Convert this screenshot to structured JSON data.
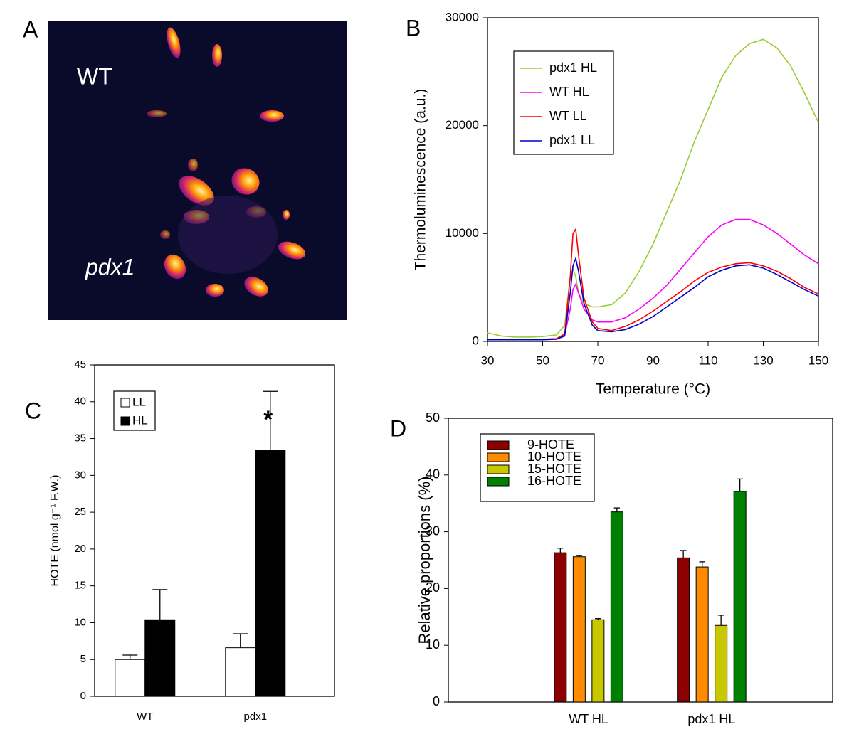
{
  "image": {
    "panel": "A",
    "labels": [
      "WT",
      "pdx1"
    ]
  },
  "chart_data": [
    {
      "type": "line",
      "panel": "B",
      "x_label": "Temperature  (°C)",
      "y_label": "Thermoluminescence  (a.u.)",
      "x": [
        30,
        35,
        40,
        45,
        50,
        55,
        58,
        60,
        61,
        62,
        63,
        65,
        68,
        70,
        75,
        80,
        85,
        90,
        95,
        100,
        105,
        110,
        115,
        120,
        125,
        130,
        135,
        140,
        145,
        150
      ],
      "xlim": [
        30,
        150
      ],
      "xticks": [
        30,
        50,
        70,
        90,
        110,
        130,
        150
      ],
      "ylim": [
        0,
        30000
      ],
      "yticks": [
        0,
        10000,
        20000,
        30000
      ],
      "legend": "upper left",
      "series": [
        {
          "name": "pdx1 HL",
          "color": "#9acd32",
          "values": [
            800,
            500,
            400,
            400,
            450,
            600,
            1500,
            6000,
            6700,
            6000,
            4500,
            3500,
            3200,
            3200,
            3400,
            4500,
            6500,
            9000,
            12000,
            15000,
            18500,
            21500,
            24500,
            26500,
            27600,
            28000,
            27200,
            25500,
            23000,
            20300
          ]
        },
        {
          "name": "WT HL",
          "color": "#ff00ff",
          "values": [
            200,
            200,
            200,
            200,
            200,
            250,
            600,
            3000,
            4800,
            5300,
            4500,
            3000,
            2000,
            1800,
            1800,
            2200,
            3000,
            4000,
            5200,
            6700,
            8200,
            9700,
            10800,
            11300,
            11300,
            10800,
            10000,
            9000,
            8000,
            7200
          ]
        },
        {
          "name": "WT LL",
          "color": "#ff0000",
          "values": [
            200,
            200,
            200,
            200,
            200,
            250,
            700,
            6000,
            10000,
            10400,
            8000,
            4000,
            1800,
            1200,
            1000,
            1400,
            2000,
            2800,
            3700,
            4600,
            5600,
            6400,
            6900,
            7200,
            7300,
            7000,
            6500,
            5800,
            5000,
            4400
          ]
        },
        {
          "name": "pdx1 LL",
          "color": "#0000cc",
          "values": [
            150,
            150,
            150,
            150,
            150,
            200,
            500,
            4500,
            7000,
            7700,
            6500,
            3500,
            1500,
            1000,
            900,
            1100,
            1600,
            2300,
            3200,
            4100,
            5000,
            6000,
            6600,
            7000,
            7100,
            6800,
            6200,
            5500,
            4800,
            4200
          ]
        }
      ]
    },
    {
      "type": "bar",
      "panel": "C",
      "y_label": "HOTE  (nmol g⁻¹ F.W.)",
      "categories": [
        "WT",
        "pdx1"
      ],
      "ylim": [
        0,
        45
      ],
      "yticks": [
        0,
        5,
        10,
        15,
        20,
        25,
        30,
        35,
        40,
        45
      ],
      "legend": "upper left",
      "annotation": "*",
      "series": [
        {
          "name": "LL",
          "color": "#ffffff",
          "values": [
            5.0,
            6.6
          ],
          "errors": [
            0.6,
            1.9
          ]
        },
        {
          "name": "HL",
          "color": "#000000",
          "values": [
            10.4,
            33.4
          ],
          "errors": [
            4.1,
            8.0
          ]
        }
      ]
    },
    {
      "type": "bar",
      "panel": "D",
      "y_label": "Relative proportions (%)",
      "categories": [
        "WT HL",
        "pdx1 HL"
      ],
      "ylim": [
        0,
        50
      ],
      "yticks": [
        0,
        10,
        20,
        30,
        40,
        50
      ],
      "legend": "upper left",
      "series": [
        {
          "name": "9-HOTE",
          "color": "#8b0000",
          "values": [
            26.3,
            25.4
          ],
          "errors": [
            0.8,
            1.3
          ]
        },
        {
          "name": "10-HOTE",
          "color": "#ff8c00",
          "values": [
            25.6,
            23.8
          ],
          "errors": [
            0.2,
            0.9
          ]
        },
        {
          "name": "15-HOTE",
          "color": "#c8c800",
          "values": [
            14.5,
            13.5
          ],
          "errors": [
            0.2,
            1.8
          ]
        },
        {
          "name": "16-HOTE",
          "color": "#008000",
          "values": [
            33.5,
            37.1
          ],
          "errors": [
            0.7,
            2.2
          ]
        }
      ]
    }
  ]
}
